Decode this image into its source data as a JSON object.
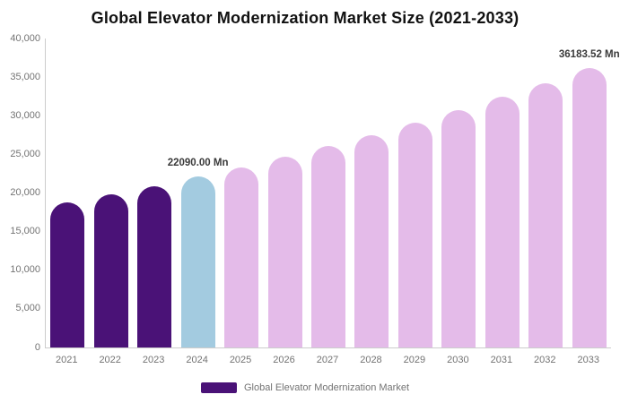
{
  "title": "Global Elevator Modernization Market Size (2021-2033)",
  "chart_data": {
    "type": "bar",
    "title": "Global Elevator Modernization Market Size (2021-2033)",
    "xlabel": "",
    "ylabel": "",
    "unit": "Mn",
    "categories": [
      "2021",
      "2022",
      "2023",
      "2024",
      "2025",
      "2026",
      "2027",
      "2028",
      "2029",
      "2030",
      "2031",
      "2032",
      "2033"
    ],
    "series": [
      {
        "name": "Global Elevator Modernization Market",
        "values": [
          18740,
          19800,
          20910,
          22090.0,
          23335,
          24650,
          26040,
          27510,
          29060,
          30700,
          32430,
          34260,
          36183.52
        ]
      }
    ],
    "bar_colors": [
      "#4A1277",
      "#4A1277",
      "#4A1277",
      "#A3CBE0",
      "#E4BBE9",
      "#E4BBE9",
      "#E4BBE9",
      "#E4BBE9",
      "#E4BBE9",
      "#E4BBE9",
      "#E4BBE9",
      "#E4BBE9",
      "#E4BBE9"
    ],
    "point_labels": [
      {
        "index": 3,
        "text": "22090.00 Mn"
      },
      {
        "index": 12,
        "text": "36183.52 Mn"
      }
    ],
    "ylim": [
      0,
      40000
    ],
    "ytick_step": 5000,
    "ytick_labels": [
      "0",
      "5,000",
      "10,000",
      "15,000",
      "20,000",
      "25,000",
      "30,000",
      "35,000",
      "40,000"
    ],
    "grid": false,
    "legend": {
      "position": "bottom",
      "entries": [
        {
          "label": "Global Elevator Modernization Market",
          "color": "#4A1277"
        }
      ]
    }
  },
  "colors": {
    "historical_bar": "#4A1277",
    "highlight_bar": "#A3CBE0",
    "forecast_bar": "#E4BBE9",
    "axis_line": "#CCCCCC",
    "axis_text": "#737373",
    "data_label_text": "#3A3A3A",
    "title_text": "#111111",
    "background": "#FFFFFF"
  }
}
